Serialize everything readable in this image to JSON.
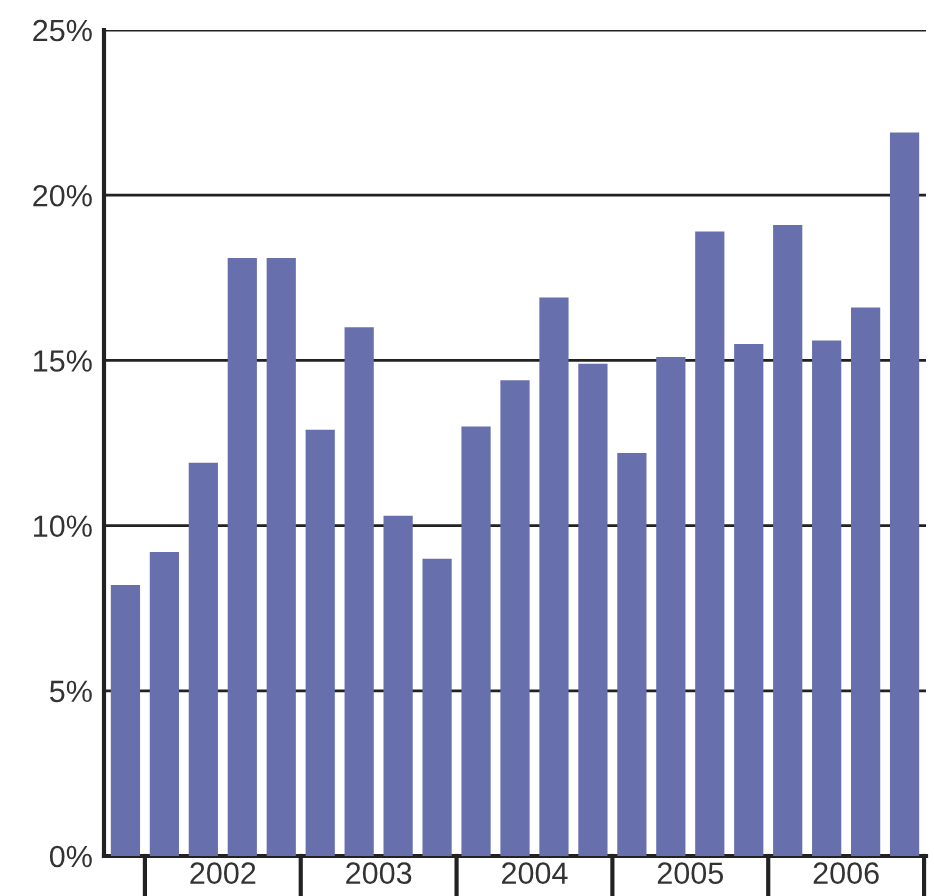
{
  "chart_data": {
    "type": "bar",
    "categories": [
      null,
      null,
      null,
      null,
      null,
      null,
      null,
      null,
      null,
      null,
      null,
      null,
      null,
      null,
      null,
      null,
      null,
      null,
      null,
      null,
      null
    ],
    "values": [
      8.2,
      9.2,
      11.9,
      18.1,
      18.1,
      12.9,
      16.0,
      10.3,
      9.0,
      13.0,
      14.4,
      16.9,
      14.9,
      12.2,
      15.1,
      18.9,
      15.5,
      19.1,
      15.6,
      16.6,
      21.9
    ],
    "color": "#6770ad",
    "ylim": [
      0,
      25
    ],
    "yticks": [
      {
        "value": 0,
        "label": "0%"
      },
      {
        "value": 5,
        "label": "5%"
      },
      {
        "value": 10,
        "label": "10%"
      },
      {
        "value": 15,
        "label": "15%"
      },
      {
        "value": 20,
        "label": "20%"
      },
      {
        "value": 25,
        "label": "25%"
      }
    ],
    "grid": "y",
    "annotations": [
      "2002",
      "2003",
      "2004",
      "2005",
      "2006"
    ]
  }
}
